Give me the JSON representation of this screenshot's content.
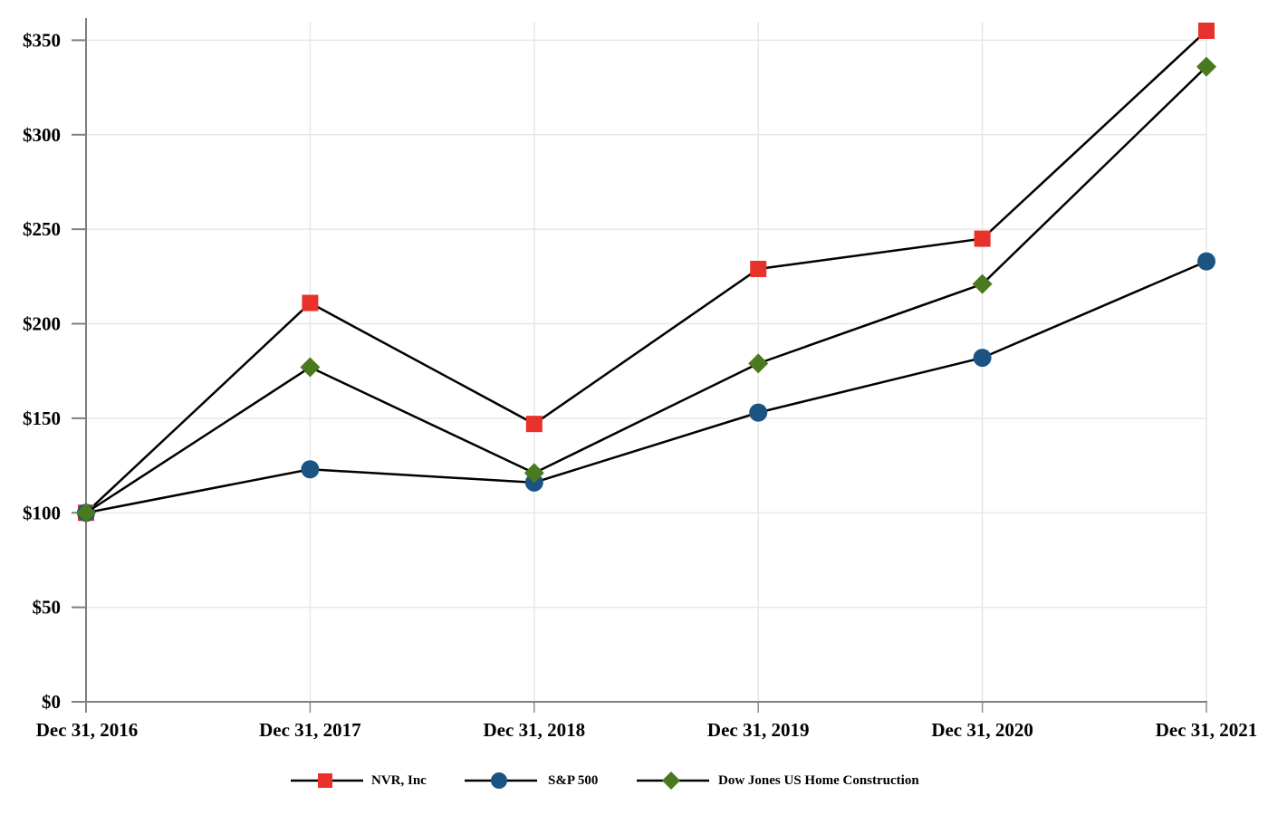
{
  "chart_data": {
    "type": "line",
    "title": "",
    "xlabel": "",
    "ylabel": "",
    "categories": [
      "Dec 31, 2016",
      "Dec 31, 2017",
      "Dec 31, 2018",
      "Dec 31, 2019",
      "Dec 31, 2020",
      "Dec 31, 2021"
    ],
    "series": [
      {
        "name": "NVR, Inc",
        "marker": "square",
        "color": "#e8312a",
        "values": [
          100,
          211,
          147,
          229,
          245,
          355
        ]
      },
      {
        "name": "S&P 500",
        "marker": "circle",
        "color": "#1b5482",
        "values": [
          100,
          123,
          116,
          153,
          182,
          233
        ]
      },
      {
        "name": "Dow Jones US Home Construction",
        "marker": "diamond",
        "color": "#4a7a20",
        "values": [
          100,
          177,
          121,
          179,
          221,
          336
        ]
      }
    ],
    "line_color": "#000000",
    "ylim": [
      0,
      350
    ],
    "y_tick_step": 50,
    "y_tick_labels": [
      "$0",
      "$50",
      "$100",
      "$150",
      "$200",
      "$250",
      "$300",
      "$350"
    ],
    "grid": true,
    "gridline_color": "#e7e7e7",
    "axis_color": "#7f7f7f",
    "legend_position": "bottom"
  }
}
